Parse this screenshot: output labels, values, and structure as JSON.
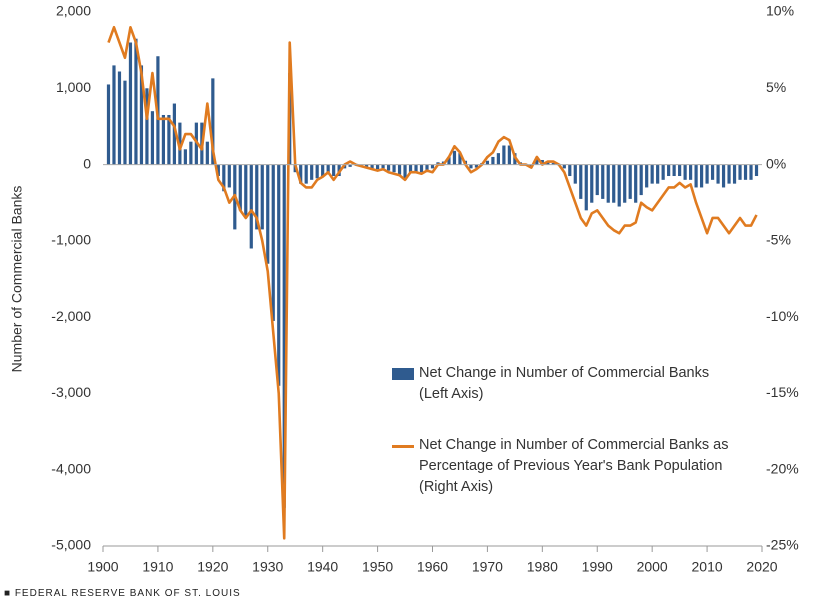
{
  "chart_data": {
    "type": "bar-line",
    "y_label": "Number of Commercial Banks",
    "source": "FEDERAL RESERVE BANK OF ST. LOUIS",
    "x": [
      1901,
      1902,
      1903,
      1904,
      1905,
      1906,
      1907,
      1908,
      1909,
      1910,
      1911,
      1912,
      1913,
      1914,
      1915,
      1916,
      1917,
      1918,
      1919,
      1920,
      1921,
      1922,
      1923,
      1924,
      1925,
      1926,
      1927,
      1928,
      1929,
      1930,
      1931,
      1932,
      1933,
      1934,
      1935,
      1936,
      1937,
      1938,
      1939,
      1940,
      1941,
      1942,
      1943,
      1944,
      1945,
      1946,
      1947,
      1948,
      1949,
      1950,
      1951,
      1952,
      1953,
      1954,
      1955,
      1956,
      1957,
      1958,
      1959,
      1960,
      1961,
      1962,
      1963,
      1964,
      1965,
      1966,
      1967,
      1968,
      1969,
      1970,
      1971,
      1972,
      1973,
      1974,
      1975,
      1976,
      1977,
      1978,
      1979,
      1980,
      1981,
      1982,
      1983,
      1984,
      1985,
      1986,
      1987,
      1988,
      1989,
      1990,
      1991,
      1992,
      1993,
      1994,
      1995,
      1996,
      1997,
      1998,
      1999,
      2000,
      2001,
      2002,
      2003,
      2004,
      2005,
      2006,
      2007,
      2008,
      2009,
      2010,
      2011,
      2012,
      2013,
      2014,
      2015,
      2016,
      2017,
      2018,
      2019
    ],
    "xlim": [
      1900,
      2020
    ],
    "xticks": [
      1900,
      1910,
      1920,
      1930,
      1940,
      1950,
      1960,
      1970,
      1980,
      1990,
      2000,
      2010,
      2020
    ],
    "ylim": [
      -5000,
      2000
    ],
    "yticks": [
      {
        "value": 2000,
        "label": "2,000"
      },
      {
        "value": 1000,
        "label": "1,000"
      },
      0,
      {
        "value": -1000,
        "label": "-1,000"
      },
      {
        "value": -2000,
        "label": "-2,000"
      },
      {
        "value": -3000,
        "label": "-3,000"
      },
      {
        "value": -4000,
        "label": "-4,000"
      },
      {
        "value": -5000,
        "label": "-5,000"
      }
    ],
    "y2lim": [
      -25,
      10
    ],
    "y2ticks": [
      {
        "value": 10,
        "label": "10%"
      },
      {
        "value": 5,
        "label": "5%"
      },
      {
        "value": 0,
        "label": "0%"
      },
      {
        "value": -5,
        "label": "-5%"
      },
      {
        "value": -10,
        "label": "-10%"
      },
      {
        "value": -15,
        "label": "-15%"
      },
      {
        "value": -20,
        "label": "-20%"
      },
      {
        "value": -25,
        "label": "-25%"
      }
    ],
    "legend": "right",
    "series": [
      {
        "name": "Net Change in Number of Commercial Banks (Left Axis)",
        "color": "#2f5b8f",
        "kind": "bar",
        "values": [
          1050,
          1300,
          1220,
          1100,
          1600,
          1650,
          1300,
          1000,
          700,
          1420,
          650,
          650,
          800,
          550,
          200,
          300,
          550,
          550,
          300,
          1130,
          -150,
          -350,
          -300,
          -850,
          -600,
          -700,
          -1100,
          -850,
          -850,
          -1300,
          -2050,
          -2900,
          -4500,
          1200,
          -100,
          -250,
          -250,
          -200,
          -180,
          -150,
          -100,
          -150,
          -150,
          -50,
          -30,
          0,
          -20,
          -30,
          -50,
          -60,
          -50,
          -80,
          -100,
          -130,
          -200,
          -100,
          -90,
          -100,
          -70,
          -50,
          30,
          40,
          100,
          180,
          150,
          50,
          -50,
          -40,
          20,
          50,
          100,
          150,
          250,
          250,
          150,
          30,
          10,
          -20,
          80,
          60,
          30,
          20,
          10,
          -50,
          -150,
          -250,
          -450,
          -600,
          -500,
          -400,
          -450,
          -500,
          -500,
          -550,
          -500,
          -450,
          -500,
          -400,
          -300,
          -250,
          -250,
          -200,
          -150,
          -150,
          -150,
          -200,
          -200,
          -300,
          -300,
          -250,
          -200,
          -250,
          -300,
          -250,
          -250,
          -200,
          -200,
          -200,
          -150
        ]
      },
      {
        "name": "Net Change in Number of Commercial Banks as Percentage of Previous Year's Bank Population (Right Axis)",
        "color": "#e07b20",
        "kind": "line",
        "axis": "y2",
        "values": [
          8,
          9,
          8,
          7,
          9,
          8,
          6,
          3,
          6,
          3,
          3,
          3,
          2.5,
          1,
          2,
          2,
          1.5,
          1,
          4,
          1,
          -1,
          -1.5,
          -2.5,
          -2,
          -3,
          -3.5,
          -3,
          -3.5,
          -5,
          -7,
          -11,
          -15,
          -24.5,
          8,
          0,
          -1.2,
          -1.5,
          -1.5,
          -1,
          -0.8,
          -0.5,
          -1,
          -0.5,
          0,
          0.2,
          0,
          -0.1,
          -0.2,
          -0.3,
          -0.4,
          -0.3,
          -0.5,
          -0.6,
          -0.7,
          -1,
          -0.5,
          -0.5,
          -0.6,
          -0.4,
          -0.5,
          0,
          0,
          0.5,
          1.2,
          0.8,
          0,
          -0.5,
          -0.3,
          0,
          0.5,
          0.8,
          1.5,
          1.8,
          1.6,
          0.5,
          0,
          0,
          -0.2,
          0.5,
          0,
          0.2,
          0.2,
          0,
          -0.5,
          -1.5,
          -2.5,
          -3.5,
          -4,
          -3.2,
          -3,
          -3.5,
          -4,
          -4.3,
          -4.5,
          -4,
          -4,
          -3.8,
          -2.5,
          -2.8,
          -3,
          -2.5,
          -2,
          -1.5,
          -1.5,
          -1.2,
          -1.5,
          -1.3,
          -2.5,
          -3.5,
          -4.5,
          -3.5,
          -3.5,
          -4,
          -4.5,
          -4,
          -3.5,
          -4,
          -4,
          -3.3
        ]
      }
    ]
  }
}
